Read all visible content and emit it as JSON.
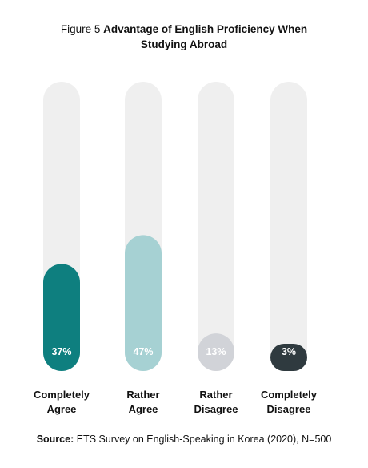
{
  "figure": {
    "prefix": "Figure 5",
    "title": "Advantage of English Proficiency When Studying Abroad"
  },
  "chart_data": {
    "type": "bar",
    "title": "Advantage of English Proficiency When Studying Abroad",
    "unit": "%",
    "categories": [
      "Completely Agree",
      "Rather Agree",
      "Rather Disagree",
      "Completely Disagree"
    ],
    "category_lines": [
      [
        "Completely",
        "Agree"
      ],
      [
        "Rather",
        "Agree"
      ],
      [
        "Rather",
        "Disagree"
      ],
      [
        "Completely",
        "Disagree"
      ]
    ],
    "values": [
      37,
      47,
      13,
      3
    ],
    "value_labels": [
      "37%",
      "47%",
      "13%",
      "3%"
    ],
    "ylim": [
      0,
      100
    ],
    "grid": false,
    "legend": "none"
  },
  "colors": {
    "track": "#efefef",
    "bars": [
      "#0e7f7f",
      "#a6d1d3",
      "#d1d3d8",
      "#2f3a3f"
    ],
    "label_text": "#ffffff"
  },
  "source": {
    "label": "Source:",
    "text": "ETS Survey on English-Speaking in Korea (2020), N=500"
  }
}
